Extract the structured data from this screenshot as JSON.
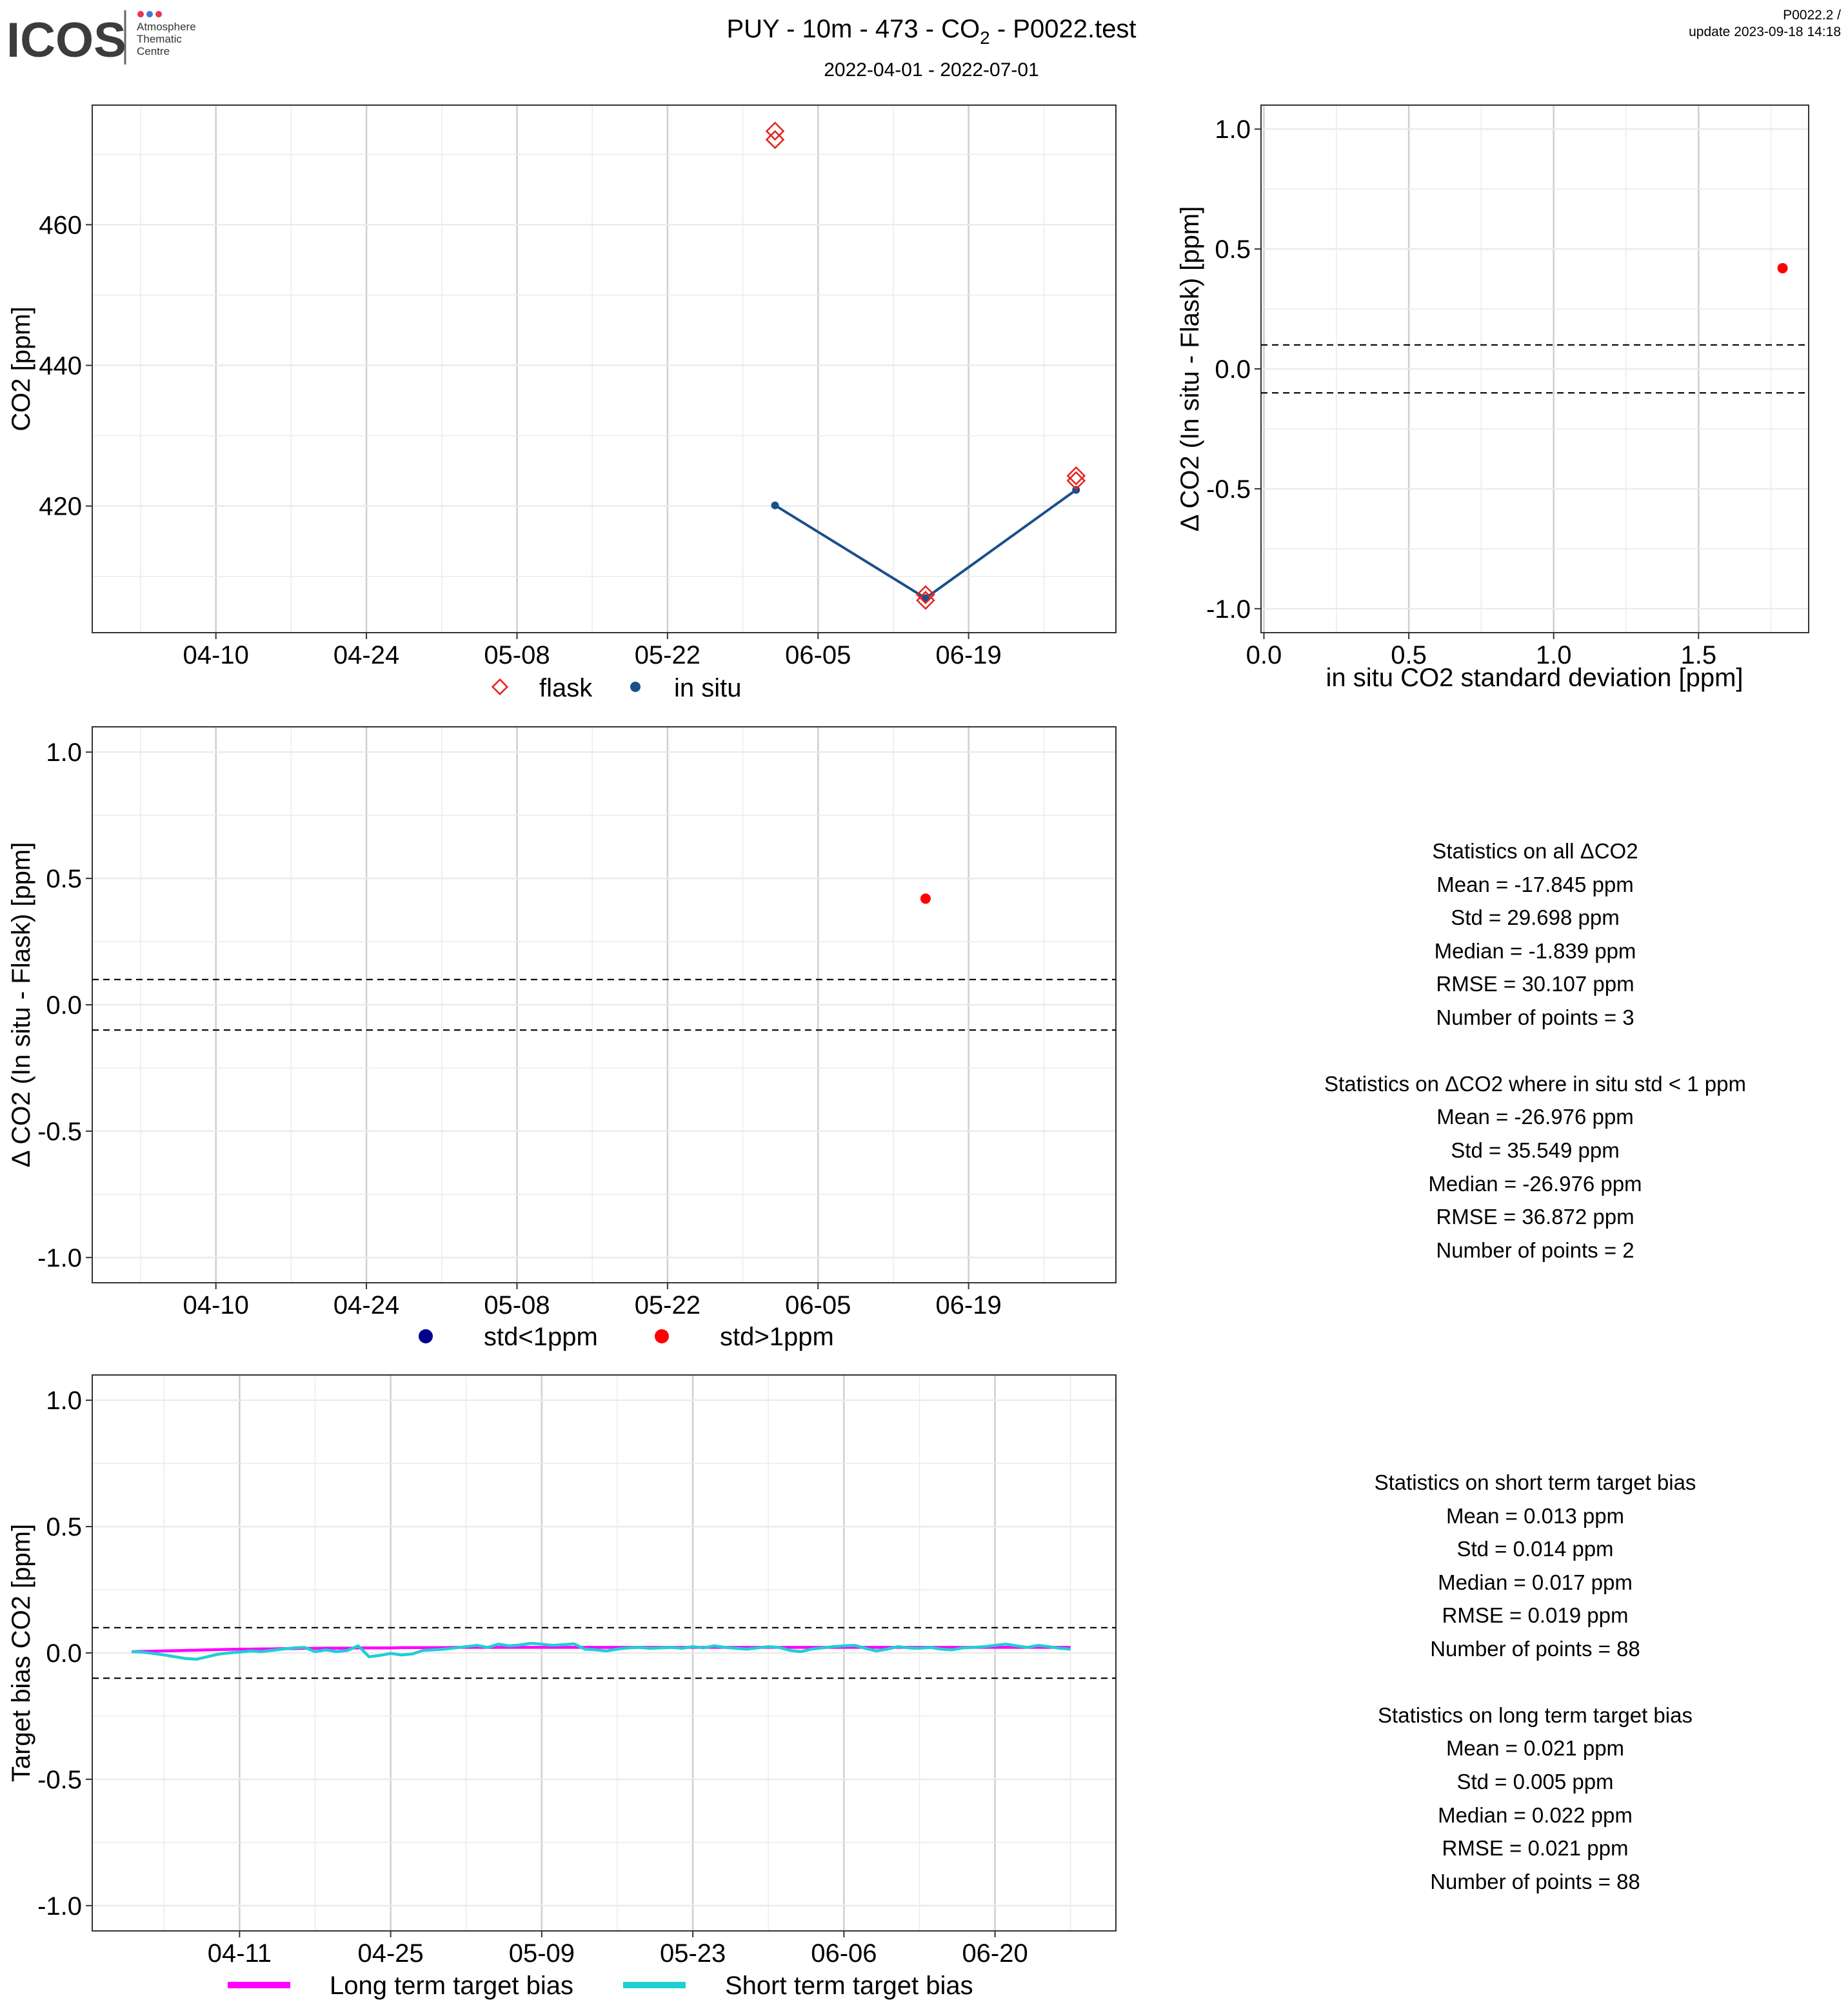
{
  "header": {
    "logo_word": "ICOS",
    "logo_sub": [
      "Atmosphere",
      "Thematic",
      "Centre"
    ],
    "title_prefix": "PUY - 10m - 473 - CO",
    "title_sub": "2",
    "title_suffix": " - P0022.test",
    "date_range": "2022-04-01 - 2022-07-01",
    "version": "P0022.2 /",
    "update": "update  2023-09-18 14:18"
  },
  "colors": {
    "flask": "#e8201c",
    "in_situ": "#1a4f8a",
    "std_lt_1": "#00008b",
    "std_gt_1": "#ff0000",
    "long_term": "#ff00ff",
    "short_term": "#1fcfd3",
    "logo_dots": [
      "#e8364b",
      "#3a7bd5",
      "#e8364b"
    ]
  },
  "chart_data": [
    {
      "id": "co2-timeseries",
      "type": "scatter",
      "ylabel": "CO2 [ppm]",
      "x_ticks": [
        "04-10",
        "04-24",
        "05-08",
        "05-22",
        "06-05",
        "06-19"
      ],
      "ylim": [
        402,
        477
      ],
      "y_ticks": [
        420,
        440,
        460
      ],
      "series": [
        {
          "name": "flask",
          "marker": "diamond-open",
          "points": [
            [
              "2022-06-01",
              472.1
            ],
            [
              "2022-06-01",
              473.3
            ],
            [
              "2022-06-15",
              406.6
            ],
            [
              "2022-06-15",
              407.4
            ],
            [
              "2022-06-29",
              423.6
            ],
            [
              "2022-06-29",
              424.3
            ]
          ]
        },
        {
          "name": "in situ",
          "marker": "dot-line",
          "points": [
            [
              "2022-06-01",
              420.1
            ],
            [
              "2022-06-15",
              406.9
            ],
            [
              "2022-06-29",
              422.3
            ]
          ]
        }
      ],
      "legend": [
        "flask",
        "in situ"
      ],
      "legend_position": "bottom"
    },
    {
      "id": "delta-vs-std",
      "type": "scatter",
      "xlabel": "in situ CO2 standard deviation [ppm]",
      "ylabel": "Δ CO2 (In situ - Flask) [ppm]",
      "xlim": [
        -0.01,
        1.88
      ],
      "x_ticks": [
        "0.0",
        "0.5",
        "1.0",
        "1.5"
      ],
      "ylim": [
        -1.1,
        1.1
      ],
      "y_ticks": [
        "-1.0",
        "-0.5",
        "0.0",
        "0.5",
        "1.0"
      ],
      "hlines": [
        0.1,
        -0.1
      ],
      "points": [
        [
          1.79,
          0.42
        ]
      ]
    },
    {
      "id": "delta-timeseries",
      "type": "scatter",
      "ylabel": "Δ CO2 (In situ - Flask) [ppm]",
      "x_ticks": [
        "04-10",
        "04-24",
        "05-08",
        "05-22",
        "06-05",
        "06-19"
      ],
      "ylim": [
        -1.1,
        1.1
      ],
      "y_ticks": [
        "-1.0",
        "-0.5",
        "0.0",
        "0.5",
        "1.0"
      ],
      "hlines": [
        0.1,
        -0.1
      ],
      "series": [
        {
          "name": "std<1ppm",
          "points": []
        },
        {
          "name": "std>1ppm",
          "points": [
            [
              "2022-06-15",
              0.42
            ]
          ]
        }
      ],
      "legend": [
        "std<1ppm",
        "std>1ppm"
      ],
      "legend_position": "bottom"
    },
    {
      "id": "target-bias",
      "type": "line",
      "ylabel": "Target bias CO2 [ppm]",
      "x_ticks": [
        "04-11",
        "04-25",
        "05-09",
        "05-23",
        "06-06",
        "06-20"
      ],
      "ylim": [
        -1.1,
        1.1
      ],
      "y_ticks": [
        "-1.0",
        "-0.5",
        "0.0",
        "0.5",
        "1.0"
      ],
      "hlines": [
        0.1,
        -0.1
      ],
      "series": [
        {
          "name": "Long term target bias",
          "start_date": "2022-04-01",
          "values": [
            0.005,
            0.006,
            0.007,
            0.008,
            0.009,
            0.01,
            0.011,
            0.012,
            0.013,
            0.014,
            0.015,
            0.015,
            0.016,
            0.016,
            0.017,
            0.017,
            0.018,
            0.018,
            0.019,
            0.019,
            0.019,
            0.02,
            0.02,
            0.02,
            0.02,
            0.021,
            0.021,
            0.021,
            0.021,
            0.021,
            0.022,
            0.022,
            0.022,
            0.022,
            0.022,
            0.022,
            0.022,
            0.022,
            0.022,
            0.022,
            0.022,
            0.022,
            0.022,
            0.022,
            0.022,
            0.022,
            0.022,
            0.022,
            0.022,
            0.022,
            0.022,
            0.022,
            0.022,
            0.022,
            0.022,
            0.022,
            0.022,
            0.022,
            0.022,
            0.022,
            0.022,
            0.022,
            0.022,
            0.022,
            0.022,
            0.022,
            0.022,
            0.022,
            0.022,
            0.022,
            0.022,
            0.022,
            0.022,
            0.022,
            0.022,
            0.022,
            0.022,
            0.022,
            0.022,
            0.022,
            0.022,
            0.022,
            0.022,
            0.022,
            0.022,
            0.022,
            0.022,
            0.022
          ]
        },
        {
          "name": "Short term target bias",
          "start_date": "2022-04-01",
          "values": [
            0.005,
            0.003,
            -0.002,
            -0.008,
            -0.015,
            -0.022,
            -0.025,
            -0.015,
            -0.005,
            0.0,
            0.003,
            0.008,
            0.005,
            0.01,
            0.015,
            0.02,
            0.022,
            0.005,
            0.012,
            0.005,
            0.01,
            0.028,
            -0.015,
            -0.01,
            -0.002,
            -0.008,
            -0.004,
            0.01,
            0.012,
            0.015,
            0.02,
            0.025,
            0.03,
            0.022,
            0.035,
            0.028,
            0.032,
            0.038,
            0.035,
            0.03,
            0.033,
            0.036,
            0.015,
            0.012,
            0.008,
            0.015,
            0.02,
            0.022,
            0.018,
            0.02,
            0.022,
            0.018,
            0.025,
            0.02,
            0.028,
            0.022,
            0.018,
            0.015,
            0.02,
            0.025,
            0.022,
            0.01,
            0.005,
            0.015,
            0.02,
            0.025,
            0.028,
            0.03,
            0.018,
            0.008,
            0.015,
            0.025,
            0.02,
            0.018,
            0.022,
            0.015,
            0.012,
            0.02,
            0.022,
            0.025,
            0.03,
            0.035,
            0.028,
            0.022,
            0.03,
            0.025,
            0.018,
            0.015
          ]
        }
      ],
      "legend": [
        "Long term target bias",
        "Short term target bias"
      ],
      "legend_position": "bottom"
    }
  ],
  "stats": {
    "all_delta": {
      "title": "Statistics on all ΔCO2",
      "lines": [
        "Mean =  -17.845 ppm",
        "Std =  29.698 ppm",
        "Median =  -1.839 ppm",
        "RMSE =  30.107 ppm",
        "Number of points =  3"
      ]
    },
    "std_lt_1": {
      "title": "Statistics on ΔCO2 where in situ std < 1 ppm",
      "lines": [
        "Mean =  -26.976 ppm",
        "Std =  35.549 ppm",
        "Median =  -26.976 ppm",
        "RMSE =  36.872 ppm",
        "Number of points =  2"
      ]
    },
    "short_term": {
      "title": "Statistics on short term target bias",
      "lines": [
        "Mean =  0.013 ppm",
        "Std =  0.014 ppm",
        "Median =  0.017 ppm",
        "RMSE =  0.019 ppm",
        "Number of points =  88"
      ]
    },
    "long_term": {
      "title": "Statistics on long term target bias",
      "lines": [
        "Mean =  0.021 ppm",
        "Std =  0.005 ppm",
        "Median =  0.022 ppm",
        "RMSE =  0.021 ppm",
        "Number of points =  88"
      ]
    }
  }
}
